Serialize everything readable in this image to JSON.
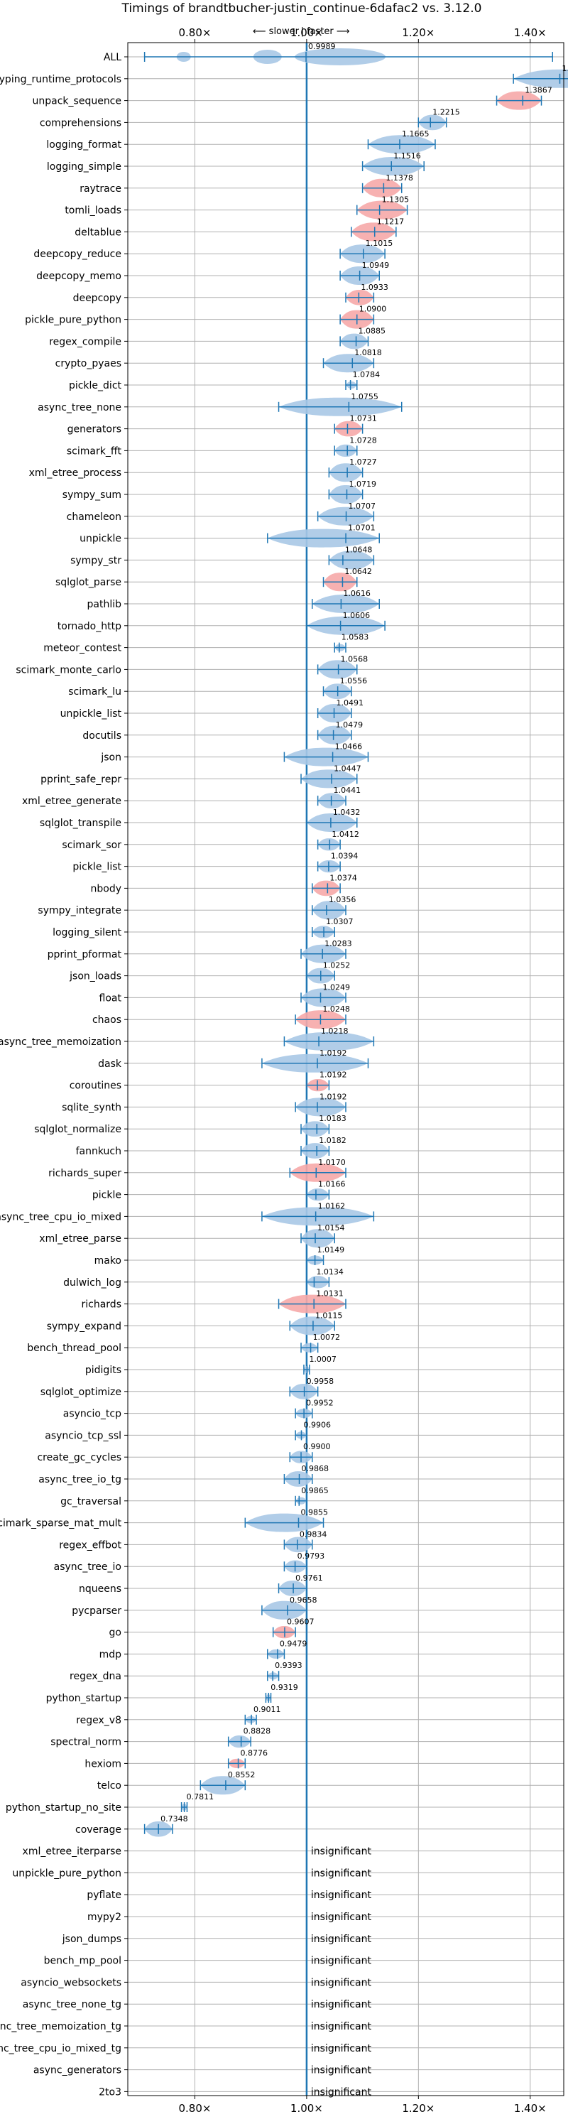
{
  "chart_data": {
    "type": "violin",
    "title": "Timings of brandtbucher-justin_continue-6dafac2 vs. 3.12.0",
    "direction": {
      "slower": "⟵ slower",
      "faster": "faster ⟶",
      "separator": "|"
    },
    "xlim": [
      0.68,
      1.46
    ],
    "x_ticks": [
      0.8,
      1.0,
      1.2,
      1.4
    ],
    "x_tick_labels": [
      "0.80×",
      "1.00×",
      "1.20×",
      "1.40×"
    ],
    "grid": true,
    "colors": {
      "faster": "#a9c8e6",
      "slower": "#f6a9a9",
      "error_bar": "#1f77b4",
      "baseline": "#1f77b4",
      "grid": "#b0b0b0"
    },
    "rows": [
      {
        "name": "ALL",
        "value": 0.9989,
        "label": "0.9989",
        "low": 0.71,
        "high": 1.44,
        "kind": "all"
      },
      {
        "name": "typing_runtime_protocols",
        "value": 1.453,
        "label": "1.4530",
        "low": 1.37,
        "high": 1.54,
        "kind": "faster"
      },
      {
        "name": "unpack_sequence",
        "value": 1.3867,
        "label": "1.3867",
        "low": 1.34,
        "high": 1.42,
        "kind": "slower"
      },
      {
        "name": "comprehensions",
        "value": 1.2215,
        "label": "1.2215",
        "low": 1.2,
        "high": 1.25,
        "kind": "faster"
      },
      {
        "name": "logging_format",
        "value": 1.1665,
        "label": "1.1665",
        "low": 1.11,
        "high": 1.23,
        "kind": "faster"
      },
      {
        "name": "logging_simple",
        "value": 1.1516,
        "label": "1.1516",
        "low": 1.1,
        "high": 1.21,
        "kind": "faster"
      },
      {
        "name": "raytrace",
        "value": 1.1378,
        "label": "1.1378",
        "low": 1.1,
        "high": 1.17,
        "kind": "slower"
      },
      {
        "name": "tomli_loads",
        "value": 1.1305,
        "label": "1.1305",
        "low": 1.09,
        "high": 1.18,
        "kind": "slower"
      },
      {
        "name": "deltablue",
        "value": 1.1217,
        "label": "1.1217",
        "low": 1.08,
        "high": 1.16,
        "kind": "slower"
      },
      {
        "name": "deepcopy_reduce",
        "value": 1.1015,
        "label": "1.1015",
        "low": 1.06,
        "high": 1.14,
        "kind": "faster"
      },
      {
        "name": "deepcopy_memo",
        "value": 1.0949,
        "label": "1.0949",
        "low": 1.06,
        "high": 1.13,
        "kind": "faster"
      },
      {
        "name": "deepcopy",
        "value": 1.0933,
        "label": "1.0933",
        "low": 1.07,
        "high": 1.12,
        "kind": "slower"
      },
      {
        "name": "pickle_pure_python",
        "value": 1.09,
        "label": "1.0900",
        "low": 1.06,
        "high": 1.12,
        "kind": "slower"
      },
      {
        "name": "regex_compile",
        "value": 1.0885,
        "label": "1.0885",
        "low": 1.06,
        "high": 1.11,
        "kind": "faster"
      },
      {
        "name": "crypto_pyaes",
        "value": 1.0818,
        "label": "1.0818",
        "low": 1.03,
        "high": 1.12,
        "kind": "faster"
      },
      {
        "name": "pickle_dict",
        "value": 1.0784,
        "label": "1.0784",
        "low": 1.07,
        "high": 1.09,
        "kind": "faster"
      },
      {
        "name": "async_tree_none",
        "value": 1.0755,
        "label": "1.0755",
        "low": 0.95,
        "high": 1.17,
        "kind": "faster"
      },
      {
        "name": "generators",
        "value": 1.0731,
        "label": "1.0731",
        "low": 1.05,
        "high": 1.1,
        "kind": "slower"
      },
      {
        "name": "scimark_fft",
        "value": 1.0728,
        "label": "1.0728",
        "low": 1.05,
        "high": 1.09,
        "kind": "faster"
      },
      {
        "name": "xml_etree_process",
        "value": 1.0727,
        "label": "1.0727",
        "low": 1.04,
        "high": 1.1,
        "kind": "faster"
      },
      {
        "name": "sympy_sum",
        "value": 1.0719,
        "label": "1.0719",
        "low": 1.04,
        "high": 1.1,
        "kind": "faster"
      },
      {
        "name": "chameleon",
        "value": 1.0707,
        "label": "1.0707",
        "low": 1.02,
        "high": 1.12,
        "kind": "faster"
      },
      {
        "name": "unpickle",
        "value": 1.0701,
        "label": "1.0701",
        "low": 0.93,
        "high": 1.13,
        "kind": "faster"
      },
      {
        "name": "sympy_str",
        "value": 1.0648,
        "label": "1.0648",
        "low": 1.04,
        "high": 1.12,
        "kind": "faster"
      },
      {
        "name": "sqlglot_parse",
        "value": 1.0642,
        "label": "1.0642",
        "low": 1.03,
        "high": 1.09,
        "kind": "slower"
      },
      {
        "name": "pathlib",
        "value": 1.0616,
        "label": "1.0616",
        "low": 1.01,
        "high": 1.13,
        "kind": "faster"
      },
      {
        "name": "tornado_http",
        "value": 1.0606,
        "label": "1.0606",
        "low": 1.0,
        "high": 1.14,
        "kind": "faster"
      },
      {
        "name": "meteor_contest",
        "value": 1.0583,
        "label": "1.0583",
        "low": 1.05,
        "high": 1.07,
        "kind": "faster"
      },
      {
        "name": "scimark_monte_carlo",
        "value": 1.0568,
        "label": "1.0568",
        "low": 1.02,
        "high": 1.09,
        "kind": "faster"
      },
      {
        "name": "scimark_lu",
        "value": 1.0556,
        "label": "1.0556",
        "low": 1.03,
        "high": 1.08,
        "kind": "faster"
      },
      {
        "name": "unpickle_list",
        "value": 1.0491,
        "label": "1.0491",
        "low": 1.02,
        "high": 1.08,
        "kind": "faster"
      },
      {
        "name": "docutils",
        "value": 1.0479,
        "label": "1.0479",
        "low": 1.02,
        "high": 1.08,
        "kind": "faster"
      },
      {
        "name": "json",
        "value": 1.0466,
        "label": "1.0466",
        "low": 0.96,
        "high": 1.11,
        "kind": "faster"
      },
      {
        "name": "pprint_safe_repr",
        "value": 1.0447,
        "label": "1.0447",
        "low": 0.99,
        "high": 1.09,
        "kind": "faster"
      },
      {
        "name": "xml_etree_generate",
        "value": 1.0441,
        "label": "1.0441",
        "low": 1.02,
        "high": 1.07,
        "kind": "faster"
      },
      {
        "name": "sqlglot_transpile",
        "value": 1.0432,
        "label": "1.0432",
        "low": 1.0,
        "high": 1.09,
        "kind": "faster"
      },
      {
        "name": "scimark_sor",
        "value": 1.0412,
        "label": "1.0412",
        "low": 1.02,
        "high": 1.06,
        "kind": "faster"
      },
      {
        "name": "pickle_list",
        "value": 1.0394,
        "label": "1.0394",
        "low": 1.02,
        "high": 1.06,
        "kind": "faster"
      },
      {
        "name": "nbody",
        "value": 1.0374,
        "label": "1.0374",
        "low": 1.01,
        "high": 1.06,
        "kind": "slower"
      },
      {
        "name": "sympy_integrate",
        "value": 1.0356,
        "label": "1.0356",
        "low": 1.01,
        "high": 1.07,
        "kind": "faster"
      },
      {
        "name": "logging_silent",
        "value": 1.0307,
        "label": "1.0307",
        "low": 1.01,
        "high": 1.05,
        "kind": "faster"
      },
      {
        "name": "pprint_pformat",
        "value": 1.0283,
        "label": "1.0283",
        "low": 0.99,
        "high": 1.07,
        "kind": "faster"
      },
      {
        "name": "json_loads",
        "value": 1.0252,
        "label": "1.0252",
        "low": 1.0,
        "high": 1.05,
        "kind": "faster"
      },
      {
        "name": "float",
        "value": 1.0249,
        "label": "1.0249",
        "low": 0.99,
        "high": 1.07,
        "kind": "faster"
      },
      {
        "name": "chaos",
        "value": 1.0248,
        "label": "1.0248",
        "low": 0.98,
        "high": 1.07,
        "kind": "slower"
      },
      {
        "name": "async_tree_memoization",
        "value": 1.0218,
        "label": "1.0218",
        "low": 0.96,
        "high": 1.12,
        "kind": "faster"
      },
      {
        "name": "dask",
        "value": 1.0192,
        "label": "1.0192",
        "low": 0.92,
        "high": 1.11,
        "kind": "faster"
      },
      {
        "name": "coroutines",
        "value": 1.0192,
        "label": "1.0192",
        "low": 1.0,
        "high": 1.04,
        "kind": "slower"
      },
      {
        "name": "sqlite_synth",
        "value": 1.0192,
        "label": "1.0192",
        "low": 0.98,
        "high": 1.07,
        "kind": "faster"
      },
      {
        "name": "sqlglot_normalize",
        "value": 1.0183,
        "label": "1.0183",
        "low": 0.99,
        "high": 1.04,
        "kind": "faster"
      },
      {
        "name": "fannkuch",
        "value": 1.0182,
        "label": "1.0182",
        "low": 0.99,
        "high": 1.04,
        "kind": "faster"
      },
      {
        "name": "richards_super",
        "value": 1.017,
        "label": "1.0170",
        "low": 0.97,
        "high": 1.07,
        "kind": "slower"
      },
      {
        "name": "pickle",
        "value": 1.0166,
        "label": "1.0166",
        "low": 1.0,
        "high": 1.04,
        "kind": "faster"
      },
      {
        "name": "async_tree_cpu_io_mixed",
        "value": 1.0162,
        "label": "1.0162",
        "low": 0.92,
        "high": 1.12,
        "kind": "faster"
      },
      {
        "name": "xml_etree_parse",
        "value": 1.0154,
        "label": "1.0154",
        "low": 0.99,
        "high": 1.05,
        "kind": "faster"
      },
      {
        "name": "mako",
        "value": 1.0149,
        "label": "1.0149",
        "low": 1.0,
        "high": 1.03,
        "kind": "faster"
      },
      {
        "name": "dulwich_log",
        "value": 1.0134,
        "label": "1.0134",
        "low": 1.0,
        "high": 1.04,
        "kind": "faster"
      },
      {
        "name": "richards",
        "value": 1.0131,
        "label": "1.0131",
        "low": 0.95,
        "high": 1.07,
        "kind": "slower"
      },
      {
        "name": "sympy_expand",
        "value": 1.0115,
        "label": "1.0115",
        "low": 0.97,
        "high": 1.05,
        "kind": "faster"
      },
      {
        "name": "bench_thread_pool",
        "value": 1.0072,
        "label": "1.0072",
        "low": 0.99,
        "high": 1.02,
        "kind": "faster"
      },
      {
        "name": "pidigits",
        "value": 1.0007,
        "label": "1.0007",
        "low": 0.995,
        "high": 1.005,
        "kind": "faster"
      },
      {
        "name": "sqlglot_optimize",
        "value": 0.9958,
        "label": "0.9958",
        "low": 0.97,
        "high": 1.02,
        "kind": "faster"
      },
      {
        "name": "asyncio_tcp",
        "value": 0.9952,
        "label": "0.9952",
        "low": 0.98,
        "high": 1.01,
        "kind": "faster"
      },
      {
        "name": "asyncio_tcp_ssl",
        "value": 0.9906,
        "label": "0.9906",
        "low": 0.98,
        "high": 1.0,
        "kind": "faster"
      },
      {
        "name": "create_gc_cycles",
        "value": 0.99,
        "label": "0.9900",
        "low": 0.97,
        "high": 1.01,
        "kind": "faster"
      },
      {
        "name": "async_tree_io_tg",
        "value": 0.9868,
        "label": "0.9868",
        "low": 0.96,
        "high": 1.01,
        "kind": "faster"
      },
      {
        "name": "gc_traversal",
        "value": 0.9865,
        "label": "0.9865",
        "low": 0.98,
        "high": 1.0,
        "kind": "faster"
      },
      {
        "name": "scimark_sparse_mat_mult",
        "value": 0.9855,
        "label": "0.9855",
        "low": 0.89,
        "high": 1.03,
        "kind": "faster"
      },
      {
        "name": "regex_effbot",
        "value": 0.9834,
        "label": "0.9834",
        "low": 0.96,
        "high": 1.01,
        "kind": "faster"
      },
      {
        "name": "async_tree_io",
        "value": 0.9793,
        "label": "0.9793",
        "low": 0.96,
        "high": 1.0,
        "kind": "faster"
      },
      {
        "name": "nqueens",
        "value": 0.9761,
        "label": "0.9761",
        "low": 0.95,
        "high": 1.0,
        "kind": "faster"
      },
      {
        "name": "pycparser",
        "value": 0.9658,
        "label": "0.9658",
        "low": 0.92,
        "high": 1.0,
        "kind": "faster"
      },
      {
        "name": "go",
        "value": 0.9607,
        "label": "0.9607",
        "low": 0.94,
        "high": 0.98,
        "kind": "slower"
      },
      {
        "name": "mdp",
        "value": 0.9479,
        "label": "0.9479",
        "low": 0.93,
        "high": 0.96,
        "kind": "faster"
      },
      {
        "name": "regex_dna",
        "value": 0.9393,
        "label": "0.9393",
        "low": 0.93,
        "high": 0.95,
        "kind": "faster"
      },
      {
        "name": "python_startup",
        "value": 0.9319,
        "label": "0.9319",
        "low": 0.927,
        "high": 0.936,
        "kind": "faster"
      },
      {
        "name": "regex_v8",
        "value": 0.9011,
        "label": "0.9011",
        "low": 0.89,
        "high": 0.91,
        "kind": "faster"
      },
      {
        "name": "spectral_norm",
        "value": 0.8828,
        "label": "0.8828",
        "low": 0.86,
        "high": 0.9,
        "kind": "faster"
      },
      {
        "name": "hexiom",
        "value": 0.8776,
        "label": "0.8776",
        "low": 0.86,
        "high": 0.89,
        "kind": "slower"
      },
      {
        "name": "telco",
        "value": 0.8552,
        "label": "0.8552",
        "low": 0.81,
        "high": 0.89,
        "kind": "faster"
      },
      {
        "name": "python_startup_no_site",
        "value": 0.7811,
        "label": "0.7811",
        "low": 0.776,
        "high": 0.786,
        "kind": "faster"
      },
      {
        "name": "coverage",
        "value": 0.7348,
        "label": "0.7348",
        "low": 0.71,
        "high": 0.76,
        "kind": "faster"
      },
      {
        "name": "xml_etree_iterparse",
        "label": "insignificant",
        "kind": "insignificant"
      },
      {
        "name": "unpickle_pure_python",
        "label": "insignificant",
        "kind": "insignificant"
      },
      {
        "name": "pyflate",
        "label": "insignificant",
        "kind": "insignificant"
      },
      {
        "name": "mypy2",
        "label": "insignificant",
        "kind": "insignificant"
      },
      {
        "name": "json_dumps",
        "label": "insignificant",
        "kind": "insignificant"
      },
      {
        "name": "bench_mp_pool",
        "label": "insignificant",
        "kind": "insignificant"
      },
      {
        "name": "asyncio_websockets",
        "label": "insignificant",
        "kind": "insignificant"
      },
      {
        "name": "async_tree_none_tg",
        "label": "insignificant",
        "kind": "insignificant"
      },
      {
        "name": "async_tree_memoization_tg",
        "label": "insignificant",
        "kind": "insignificant"
      },
      {
        "name": "async_tree_cpu_io_mixed_tg",
        "label": "insignificant",
        "kind": "insignificant"
      },
      {
        "name": "async_generators",
        "label": "insignificant",
        "kind": "insignificant"
      },
      {
        "name": "2to3",
        "label": "insignificant",
        "kind": "insignificant"
      }
    ]
  }
}
